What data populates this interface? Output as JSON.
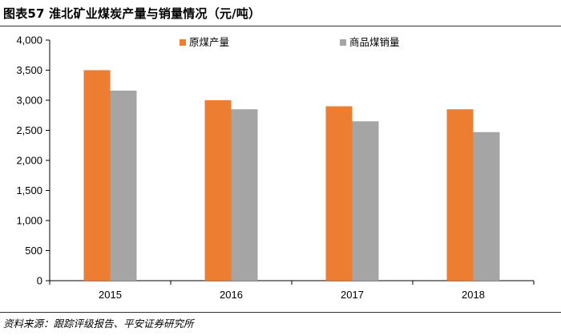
{
  "header": {
    "title": "图表57    淮北矿业煤炭产量与销量情况（元/吨）"
  },
  "footer": {
    "source": "资料来源：跟踪评级报告、平安证券研究所"
  },
  "chart_data": {
    "type": "bar",
    "categories": [
      "2015",
      "2016",
      "2017",
      "2018"
    ],
    "series": [
      {
        "name": "原煤产量",
        "values": [
          3500,
          3000,
          2900,
          2850
        ],
        "color": "#ED7D31"
      },
      {
        "name": "商品煤销量",
        "values": [
          3160,
          2850,
          2650,
          2470
        ],
        "color": "#A5A5A5"
      }
    ],
    "ylim": [
      0,
      4000
    ],
    "yticks": [
      0,
      500,
      1000,
      1500,
      2000,
      2500,
      3000,
      3500,
      4000
    ],
    "ytick_labels": [
      "0",
      "500",
      "1,000",
      "1,500",
      "2,000",
      "2,500",
      "3,000",
      "3,500",
      "4,000"
    ],
    "xlabel": "",
    "ylabel": "",
    "grid": false,
    "legend_position": "top"
  }
}
